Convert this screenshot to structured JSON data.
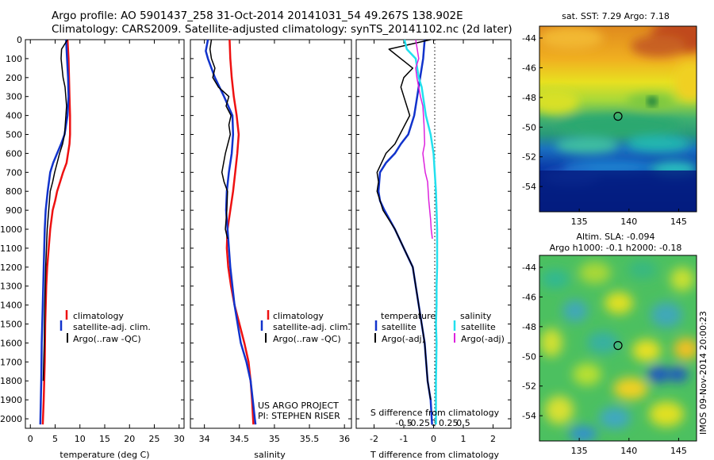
{
  "header": {
    "line1": "Argo profile: AO 5901437_258 31-Oct-2014 20141031_54 49.267S 138.902E",
    "line2": "Climatology: CARS2009. Satellite-adjusted climatology: synTS_20141102.nc (2d later)"
  },
  "colors": {
    "climatology": "#ee1111",
    "satellite": "#1133cc",
    "argo": "#000000",
    "salinity_satellite": "#22e0ee",
    "salinity_argo": "#dd22dd"
  },
  "chart_data": [
    {
      "type": "line",
      "panel": "temperature",
      "xlabel": "temperature (deg C)",
      "ylabel": "",
      "xlim": [
        -1,
        31
      ],
      "ylim": [
        2050,
        0
      ],
      "xticks": [
        0,
        5,
        10,
        15,
        20,
        25,
        30
      ],
      "yticks": [
        0,
        100,
        200,
        300,
        400,
        500,
        600,
        700,
        800,
        900,
        1000,
        1100,
        1200,
        1300,
        1400,
        1500,
        1600,
        1700,
        1800,
        1900,
        2000
      ],
      "legend_position": "lower-left",
      "series": [
        {
          "name": "climatology",
          "color_key": "climatology",
          "width": 2.5,
          "x": [
            7.5,
            7.7,
            7.8,
            7.9,
            8.0,
            8.0,
            7.9,
            7.3,
            6.6,
            6.0,
            5.4,
            5.0,
            4.5,
            4.0,
            3.7,
            3.4,
            3.2,
            3.0,
            2.9,
            2.7,
            2.5
          ],
          "y": [
            0,
            100,
            200,
            300,
            400,
            500,
            550,
            650,
            700,
            750,
            800,
            850,
            900,
            1000,
            1100,
            1200,
            1300,
            1500,
            1700,
            1900,
            2030
          ]
        },
        {
          "name": "satellite-adj. clim.",
          "color_key": "satellite",
          "width": 2.5,
          "x": [
            7.2,
            7.4,
            7.6,
            7.7,
            7.5,
            6.9,
            6.2,
            5.4,
            4.6,
            4.0,
            3.5,
            3.1,
            2.9,
            2.7,
            2.5,
            2.3,
            2.2,
            2.0
          ],
          "y": [
            0,
            100,
            200,
            300,
            400,
            500,
            550,
            600,
            650,
            700,
            800,
            900,
            1000,
            1200,
            1400,
            1600,
            1800,
            2030
          ]
        },
        {
          "name": "Argo(..raw -QC)",
          "color_key": "argo",
          "width": 1.5,
          "x": [
            7.5,
            6.3,
            6.2,
            6.6,
            7.0,
            7.3,
            6.9,
            6.5,
            5.9,
            5.4,
            4.9,
            4.5,
            4.0,
            3.7,
            3.4,
            3.1,
            2.9,
            2.8,
            2.6
          ],
          "y": [
            0,
            50,
            100,
            200,
            250,
            350,
            500,
            550,
            600,
            650,
            700,
            750,
            800,
            900,
            1000,
            1200,
            1400,
            1600,
            1800
          ]
        }
      ]
    },
    {
      "type": "line",
      "panel": "salinity",
      "xlabel": "salinity",
      "ylabel": "",
      "xlim": [
        33.8,
        36.1
      ],
      "ylim": [
        2050,
        0
      ],
      "xticks": [
        34,
        34.5,
        35,
        35.5,
        36
      ],
      "legend_position": "lower-right",
      "annotations": [
        "US ARGO PROJECT",
        "PI: STEPHEN RISER"
      ],
      "series": [
        {
          "name": "climatology",
          "color_key": "climatology",
          "width": 2.5,
          "x": [
            34.36,
            34.37,
            34.39,
            34.42,
            34.46,
            34.49,
            34.47,
            34.44,
            34.41,
            34.37,
            34.33,
            34.32,
            34.34,
            34.38,
            34.43,
            34.5,
            34.57,
            34.63,
            34.66,
            34.68,
            34.7
          ],
          "y": [
            0,
            100,
            200,
            300,
            400,
            500,
            600,
            700,
            800,
            900,
            1000,
            1100,
            1200,
            1300,
            1400,
            1500,
            1600,
            1700,
            1800,
            1900,
            2030
          ]
        },
        {
          "name": "satellite-adj. clim.",
          "color_key": "satellite",
          "width": 2.5,
          "x": [
            34.05,
            34.02,
            34.05,
            34.15,
            34.28,
            34.4,
            34.41,
            34.39,
            34.35,
            34.32,
            34.31,
            34.33,
            34.37,
            34.43,
            34.52,
            34.6,
            34.66,
            34.69,
            34.72,
            34.73
          ],
          "y": [
            0,
            60,
            100,
            200,
            300,
            400,
            500,
            600,
            700,
            800,
            900,
            1000,
            1200,
            1400,
            1600,
            1700,
            1800,
            1900,
            2000,
            2030
          ]
        },
        {
          "name": "Argo(..raw -QC)",
          "color_key": "argo",
          "width": 1.5,
          "x": [
            34.1,
            34.08,
            34.1,
            34.15,
            34.12,
            34.2,
            34.35,
            34.31,
            34.38,
            34.35,
            34.37,
            34.3,
            34.25,
            34.28,
            34.33,
            34.32,
            34.3,
            34.33
          ],
          "y": [
            0,
            50,
            100,
            150,
            200,
            250,
            300,
            350,
            400,
            450,
            500,
            600,
            700,
            750,
            800,
            900,
            1000,
            1050
          ]
        }
      ]
    },
    {
      "type": "line",
      "panel": "difference",
      "xlabel": "T difference from climatology",
      "xlabel_top": "S difference from climatology",
      "xlim": [
        -2.6,
        2.6
      ],
      "ylim": [
        2050,
        0
      ],
      "xticks": [
        -2,
        -1,
        0,
        1,
        2
      ],
      "xticks_top": [
        -0.5,
        -0.25,
        0,
        0.25,
        0.5
      ],
      "xtick_labels_top": [
        "-0.5",
        "-0.25",
        "0",
        "0.25",
        "0.5"
      ],
      "legend_temperature_title": "temperature",
      "legend_salinity_title": "salinity",
      "series": [
        {
          "name": "satellite",
          "quantity": "temperature",
          "color_key": "satellite",
          "width": 2.5,
          "x": [
            -0.3,
            -0.35,
            -0.45,
            -0.55,
            -0.65,
            -0.85,
            -1.1,
            -1.3,
            -1.6,
            -1.8,
            -1.85,
            -1.8,
            -1.65,
            -1.3,
            -1.0,
            -0.7,
            -0.5,
            -0.3,
            -0.2,
            -0.1,
            -0.05
          ],
          "y": [
            0,
            100,
            200,
            300,
            400,
            500,
            550,
            600,
            650,
            700,
            800,
            850,
            900,
            1000,
            1100,
            1200,
            1400,
            1600,
            1800,
            1900,
            2030
          ]
        },
        {
          "name": "Argo(-adj)",
          "quantity": "temperature",
          "color_key": "argo",
          "width": 1.5,
          "x": [
            -0.1,
            -1.5,
            -0.7,
            -1.0,
            -1.1,
            -1.0,
            -0.8,
            -1.3,
            -1.6,
            -1.9,
            -1.85,
            -1.9,
            -1.7,
            -1.3,
            -1.0,
            -0.7,
            -0.5,
            -0.3,
            -0.2,
            -0.1
          ],
          "y": [
            0,
            50,
            150,
            200,
            250,
            300,
            400,
            550,
            600,
            700,
            750,
            800,
            900,
            1000,
            1100,
            1200,
            1400,
            1600,
            1800,
            1900
          ]
        },
        {
          "name": "satellite",
          "quantity": "salinity",
          "color_key": "salinity_satellite",
          "width": 2.5,
          "x": [
            -0.49,
            -0.45,
            -0.3,
            -0.25,
            -0.2,
            -0.13,
            -0.05,
            0.0,
            0.02,
            0.04,
            0.05,
            0.06,
            0.06,
            0.06,
            0.05,
            0.05,
            0.04,
            0.05,
            0.04,
            0.04,
            0.04
          ],
          "y": [
            0,
            50,
            100,
            200,
            250,
            400,
            500,
            600,
            700,
            800,
            900,
            1000,
            1100,
            1200,
            1300,
            1400,
            1500,
            1600,
            1800,
            1900,
            2030
          ]
        },
        {
          "name": "Argo(-adj)",
          "quantity": "salinity",
          "color_key": "salinity_argo",
          "width": 1.5,
          "x": [
            -0.3,
            -0.25,
            -0.3,
            -0.28,
            -0.22,
            -0.18,
            -0.16,
            -0.15,
            -0.18,
            -0.14,
            -0.1,
            -0.08,
            -0.05,
            -0.04,
            -0.02
          ],
          "y": [
            0,
            100,
            150,
            200,
            300,
            350,
            450,
            550,
            600,
            700,
            750,
            850,
            950,
            1000,
            1050
          ]
        }
      ]
    },
    {
      "type": "heatmap",
      "panel": "sst_map",
      "title": "sat. SST: 7.29 Argo: 7.18",
      "xlim": [
        131,
        146.8
      ],
      "ylim": [
        -55.7,
        -43.2
      ],
      "xticks": [
        135,
        140,
        145
      ],
      "yticks": [
        -44,
        -46,
        -48,
        -50,
        -52,
        -54
      ],
      "argo_position": {
        "lon": 138.9,
        "lat": -49.27
      }
    },
    {
      "type": "heatmap",
      "panel": "sla_map",
      "title": "Altim. SLA: -0.094",
      "subtitle": "Argo h1000: -0.1 h2000: -0.18",
      "xlim": [
        131,
        146.8
      ],
      "ylim": [
        -55.7,
        -43.2
      ],
      "xticks": [
        135,
        140,
        145
      ],
      "yticks": [
        -44,
        -46,
        -48,
        -50,
        -52,
        -54
      ],
      "argo_position": {
        "lon": 138.9,
        "lat": -49.27
      }
    }
  ],
  "footer_stamp": "IMOS 09-Nov-2014 20:00:23"
}
